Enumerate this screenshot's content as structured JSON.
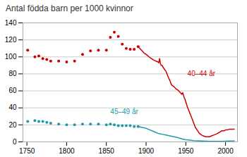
{
  "chart_data": {
    "type": "line",
    "title": "Antal födda barn per 1000 kvinnor",
    "xlim": [
      1745,
      2015
    ],
    "ylim": [
      0,
      140
    ],
    "xticks": [
      1750,
      1800,
      1850,
      1900,
      1950,
      2000
    ],
    "yticks": [
      0,
      20,
      40,
      60,
      80,
      100,
      120,
      140
    ],
    "grid": true,
    "series": [
      {
        "type": "scatter",
        "color": "#cc0000",
        "x": [
          1751,
          1760,
          1765,
          1770,
          1775,
          1780,
          1790,
          1800,
          1810,
          1820,
          1830,
          1840,
          1850,
          1855,
          1860,
          1865,
          1870,
          1875,
          1880,
          1885,
          1890
        ],
        "values": [
          108,
          100,
          101,
          98,
          97,
          95,
          95,
          94,
          95,
          103,
          107,
          108,
          108,
          123,
          129,
          124,
          115,
          110,
          109,
          109,
          112
        ]
      },
      {
        "type": "scatter",
        "color": "#2299aa",
        "x": [
          1751,
          1760,
          1765,
          1770,
          1775,
          1780,
          1790,
          1800,
          1810,
          1820,
          1830,
          1840,
          1850,
          1855,
          1860,
          1865,
          1870,
          1875,
          1880,
          1885,
          1890
        ],
        "values": [
          24,
          25,
          24,
          24,
          23,
          22,
          21,
          20,
          20,
          21,
          21,
          21,
          20,
          21,
          20,
          19,
          19,
          19,
          19,
          18,
          18
        ]
      },
      {
        "type": "line",
        "color": "#cc0000",
        "x": [
          1890,
          1892,
          1895,
          1898,
          1900,
          1905,
          1910,
          1915,
          1916,
          1917,
          1918,
          1919,
          1920,
          1922,
          1925,
          1928,
          1930,
          1932,
          1935,
          1938,
          1940,
          1942,
          1944,
          1945,
          1946,
          1947,
          1948,
          1949,
          1950,
          1952,
          1955,
          1958,
          1960,
          1962,
          1965,
          1967,
          1970,
          1972,
          1975,
          1978,
          1980,
          1982,
          1985,
          1988,
          1990,
          1992,
          1995,
          1998,
          2000,
          2002,
          2005,
          2008,
          2010,
          2011
        ],
        "values": [
          112,
          110,
          107,
          104,
          103,
          99,
          96,
          94,
          93,
          98,
          92,
          90,
          90,
          87,
          83,
          76,
          72,
          67,
          65,
          62,
          61,
          59,
          57,
          56,
          58,
          55,
          52,
          50,
          47,
          41,
          34,
          27,
          22,
          17,
          13,
          10,
          8,
          7,
          6,
          6,
          6,
          7,
          8,
          9,
          10,
          11,
          13,
          13,
          14,
          14,
          15,
          15,
          15,
          15
        ]
      },
      {
        "type": "line",
        "color": "#2299aa",
        "x": [
          1890,
          1895,
          1900,
          1905,
          1910,
          1915,
          1920,
          1925,
          1930,
          1935,
          1940,
          1945,
          1950,
          1955,
          1960,
          1965,
          1970,
          1975,
          1980,
          1985,
          1990,
          1995,
          2000,
          2005,
          2010,
          2011
        ],
        "values": [
          18,
          17,
          16,
          14,
          12,
          10,
          9,
          8,
          7,
          6,
          5,
          3.5,
          2.5,
          2,
          1.5,
          1.2,
          1,
          0.8,
          0.7,
          0.6,
          0.6,
          0.7,
          0.8,
          1,
          1.2,
          1.3
        ]
      }
    ],
    "annotations": [
      {
        "text": "40–44 år",
        "x": 1952,
        "y": 80,
        "color": "#cc0000"
      },
      {
        "text": "45–49 år",
        "x": 1855,
        "y": 35,
        "color": "#2299aa"
      }
    ]
  }
}
